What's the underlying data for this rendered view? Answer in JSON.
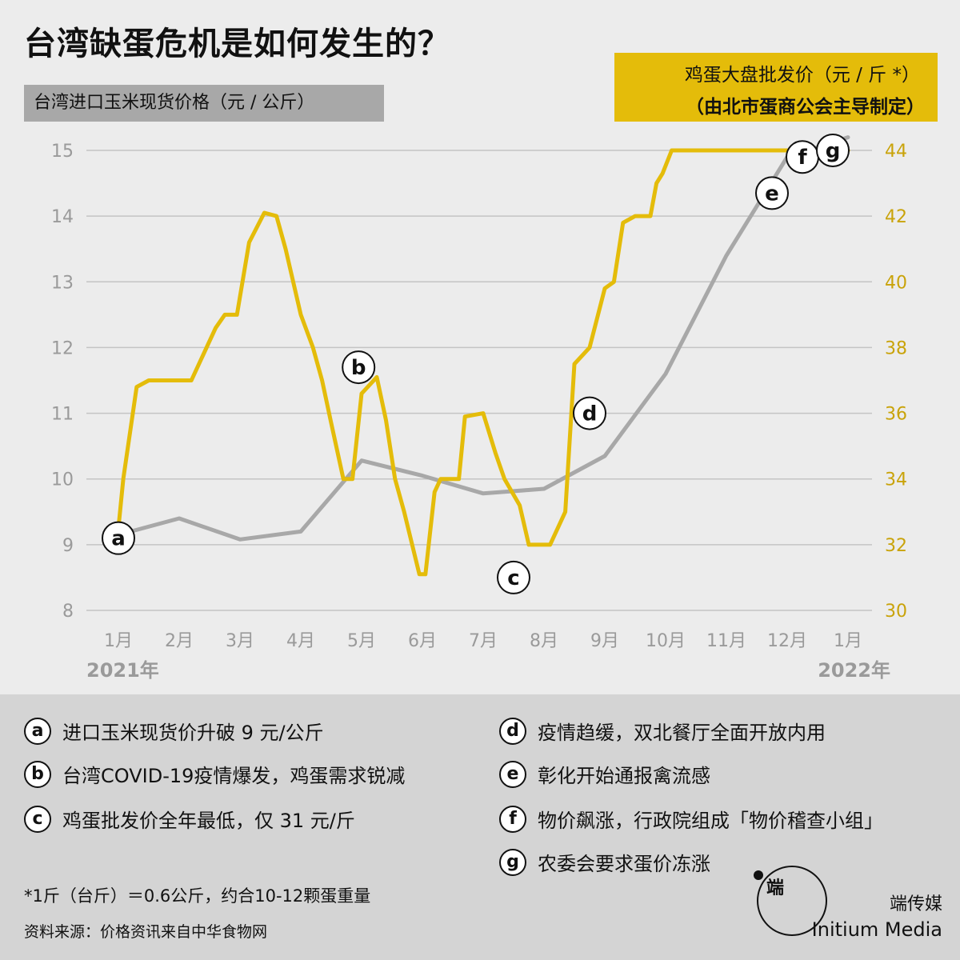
{
  "title": "台湾缺蛋危机是如何发生的？",
  "left_axis_label": "台湾进口玉米现货价格（元 / 公斤）",
  "right_axis_label": {
    "line1": "鸡蛋大盘批发价（元 / 斤 *）",
    "line2": "（由北市蛋商公会主导制定）"
  },
  "colors": {
    "corn": "#a8a8a8",
    "egg": "#e4bc0a",
    "bg": "#ececec",
    "bottom_bg": "#d4d4d4"
  },
  "chart_data": {
    "type": "line",
    "x_ticks": [
      "1月",
      "2月",
      "3月",
      "4月",
      "5月",
      "6月",
      "7月",
      "8月",
      "9月",
      "10月",
      "11月",
      "12月",
      "1月"
    ],
    "year_labels": {
      "start": "2021年",
      "end": "2022年"
    },
    "left_axis": {
      "ticks": [
        8,
        9,
        10,
        11,
        12,
        13,
        14,
        15
      ],
      "range": [
        8,
        15
      ]
    },
    "right_axis": {
      "ticks": [
        30,
        32,
        34,
        36,
        38,
        40,
        42,
        44
      ],
      "range": [
        30,
        44
      ]
    },
    "grid": true,
    "series": [
      {
        "axis": "left",
        "x": [
          0,
          1,
          2,
          3,
          4,
          5,
          6,
          7,
          8,
          9,
          10,
          11,
          12
        ],
        "y": [
          9.15,
          9.4,
          9.08,
          9.2,
          10.28,
          10.05,
          9.78,
          9.85,
          10.35,
          11.6,
          13.4,
          14.9,
          15.2
        ]
      },
      {
        "axis": "right",
        "x": [
          0,
          0.08,
          0.3,
          0.5,
          0.75,
          1.0,
          1.2,
          1.6,
          1.75,
          1.95,
          2.15,
          2.4,
          2.6,
          2.75,
          3.0,
          3.2,
          3.35,
          3.5,
          3.7,
          3.85,
          4.0,
          4.25,
          4.4,
          4.55,
          4.7,
          4.95,
          5.05,
          5.2,
          5.3,
          5.45,
          5.6,
          5.7,
          6.0,
          6.2,
          6.35,
          6.6,
          6.75,
          6.9,
          7.1,
          7.35,
          7.5,
          7.75,
          8.0,
          8.15,
          8.3,
          8.5,
          8.75,
          8.85,
          8.95,
          9.1,
          9.3,
          9.5,
          9.75,
          9.9,
          10.05,
          10.25,
          10.4,
          10.55,
          10.75,
          10.9,
          11.1,
          11.3,
          11.5,
          11.6,
          11.8,
          12.0
        ],
        "values_note": "",
        "y": [
          32.5,
          34.0,
          36.8,
          37.0,
          37.0,
          37.0,
          37.0,
          38.6,
          39.0,
          39.0,
          41.2,
          42.1,
          42.0,
          41.0,
          39.0,
          38.0,
          37.0,
          35.7,
          34.0,
          34.0,
          36.6,
          37.1,
          35.8,
          34.0,
          33.0,
          31.1,
          31.1,
          33.6,
          34.0,
          34.0,
          34.0,
          35.9,
          36.0,
          34.8,
          34.0,
          33.2,
          32.0,
          32.0,
          32.0,
          33.0,
          37.5,
          38.0,
          39.8,
          40.0,
          41.8,
          42.0,
          42.0,
          43.0,
          43.3,
          44.0,
          44.0,
          44.0,
          44.0,
          44.0,
          44.0,
          44.0,
          44.0,
          44.0,
          44.0,
          44.0,
          44.0,
          44.0,
          44.0,
          44.0,
          44.0,
          44.0
        ]
      }
    ],
    "annotations": [
      {
        "label": "a",
        "x": 0,
        "y": 32.2,
        "axis": "right"
      },
      {
        "label": "b",
        "x": 3.95,
        "y": 37.4,
        "axis": "right"
      },
      {
        "label": "c",
        "x": 6.5,
        "y": 31.0,
        "axis": "right"
      },
      {
        "label": "d",
        "x": 7.75,
        "y": 36.0,
        "axis": "right"
      },
      {
        "label": "e",
        "x": 10.75,
        "y": 42.7,
        "axis": "right"
      },
      {
        "label": "f",
        "x": 11.25,
        "y": 43.8,
        "axis": "right"
      },
      {
        "label": "g",
        "x": 11.75,
        "y": 44.0,
        "axis": "right"
      }
    ]
  },
  "legend": [
    {
      "key": "a",
      "text": "进口玉米现货价升破 9 元/公斤"
    },
    {
      "key": "b",
      "text": "台湾COVID-19疫情爆发，鸡蛋需求锐减"
    },
    {
      "key": "c",
      "text": "鸡蛋批发价全年最低，仅 31 元/斤"
    },
    {
      "key": "d",
      "text": "疫情趋缓，双北餐厅全面开放内用"
    },
    {
      "key": "e",
      "text": "彰化开始通报禽流感"
    },
    {
      "key": "f",
      "text": "物价飙涨，行政院组成「物价稽查小组」"
    },
    {
      "key": "g",
      "text": "农委会要求蛋价冻涨"
    }
  ],
  "footnote": "*1斤（台斤）＝0.6公斤，约合10-12颗蛋重量",
  "source": "资料来源：价格资讯来自中华食物网",
  "brand": {
    "cn": "端传媒",
    "en": "Initium Media",
    "logo_glyph": "端"
  }
}
